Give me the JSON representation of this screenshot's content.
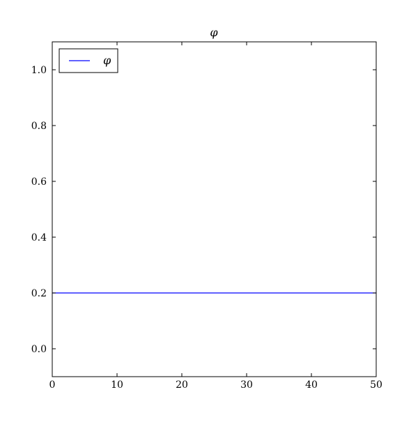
{
  "chart_data": {
    "type": "line",
    "title": "φ",
    "xlabel": "",
    "ylabel": "",
    "xlim": [
      0,
      50
    ],
    "ylim": [
      -0.1,
      1.1
    ],
    "xticks": [
      0,
      10,
      20,
      30,
      40,
      50
    ],
    "xtick_labels": [
      "0",
      "10",
      "20",
      "30",
      "40",
      "50"
    ],
    "yticks": [
      0.0,
      0.2,
      0.4,
      0.6,
      0.8,
      1.0
    ],
    "ytick_labels": [
      "0.0",
      "0.2",
      "0.4",
      "0.6",
      "0.8",
      "1.0"
    ],
    "grid": false,
    "legend_placement": "top-left",
    "series": [
      {
        "name": "φ",
        "color": "#0000ff",
        "x": [
          0,
          50
        ],
        "y": [
          0.2,
          0.2
        ]
      }
    ]
  }
}
